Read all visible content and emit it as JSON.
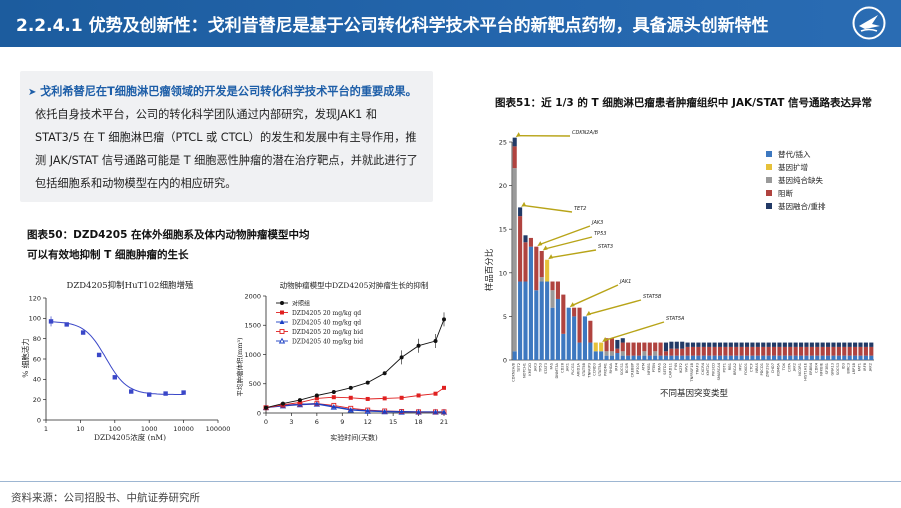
{
  "header": {
    "title": "2.2.4.1 优势及创新性：戈利昔替尼是基于公司转化科学技术平台的新靶点药物，具备源头创新特性"
  },
  "summary": {
    "lead": "戈利希替尼在T细胞淋巴瘤领域的开发是公司转化科学技术平台的重要成果。",
    "lines": [
      "依托自身技术平台，公司的转化科学团队通过内部研究，发现JAK1 和",
      "STAT3/5 在 T 细胞淋巴瘤（PTCL 或 CTCL）的发生和发展中有主导作用，推",
      "测 JAK/STAT 信号通路可能是 T 细胞恶性肿瘤的潜在治疗靶点，并就此进行了",
      "包括细胞系和动物模型在内的相应研究。"
    ]
  },
  "fig50": {
    "caption_line1": "图表50：DZD4205 在体外细胞系及体内动物肿瘤模型中均",
    "caption_line2": "可以有效地抑制 T 细胞肿瘤的生长"
  },
  "fig51": {
    "caption": "图表51：近 1/3 的 T 细胞淋巴瘤患者肿瘤组织中 JAK/STAT 信号通路表达异常"
  },
  "footer": {
    "source": "资料来源：公司招股书、中航证券研究所"
  },
  "colors": {
    "header_bg": "#2466ad",
    "blue": "#3d78c0",
    "yellow": "#e6c13a",
    "gray": "#9a9a9a",
    "red": "#b0433f",
    "navy": "#223a66",
    "arrow": "#b8a418"
  },
  "chart_data": [
    {
      "type": "scatter",
      "title": "DZD4205抑制HuT102细胞增殖",
      "xlabel": "DZD4205浓度 (nM)",
      "ylabel": "% 细胞活力",
      "xscale": "log",
      "xlim": [
        1,
        100000
      ],
      "ylim": [
        0,
        120
      ],
      "xticks": [
        "1",
        "10",
        "100",
        "1000",
        "10000",
        "100000"
      ],
      "yticks": [
        "0",
        "20",
        "40",
        "60",
        "80",
        "100",
        "120"
      ],
      "x": [
        1.4,
        4,
        12,
        35,
        100,
        300,
        1000,
        3000,
        10000
      ],
      "y": [
        97,
        94,
        86,
        64,
        42,
        28,
        25,
        26,
        27
      ],
      "grid": false
    },
    {
      "type": "line",
      "title": "动物肿瘤模型中DZD4205对肿瘤生长的抑制",
      "xlabel": "实验时间(天数)",
      "ylabel": "平均肿瘤体积(mm³)",
      "xlim": [
        0,
        21
      ],
      "ylim": [
        0,
        2000
      ],
      "xticks": [
        "0",
        "3",
        "6",
        "9",
        "12",
        "15",
        "18",
        "21"
      ],
      "yticks": [
        "0",
        "500",
        "1000",
        "1500",
        "2000"
      ],
      "legend_position": "top-left",
      "x": [
        0,
        2,
        4,
        6,
        8,
        10,
        12,
        14,
        16,
        18,
        20,
        21
      ],
      "series": [
        {
          "name": "对照组",
          "color": "#111111",
          "marker": "circle",
          "values": [
            90,
            160,
            220,
            300,
            360,
            430,
            520,
            680,
            950,
            1150,
            1230,
            1600
          ]
        },
        {
          "name": "DZD4205 20 mg/kg qd",
          "color": "#e02020",
          "marker": "square",
          "values": [
            90,
            140,
            180,
            250,
            270,
            260,
            240,
            250,
            260,
            300,
            330,
            430
          ]
        },
        {
          "name": "DZD4205 40 mg/kg qd",
          "color": "#1a3fc4",
          "marker": "triangle",
          "values": [
            90,
            130,
            150,
            160,
            110,
            60,
            40,
            30,
            25,
            20,
            20,
            20
          ]
        },
        {
          "name": "DZD4205 20 mg/kg bid",
          "color": "#e02020",
          "marker": "square-open",
          "values": [
            90,
            130,
            150,
            160,
            130,
            80,
            50,
            35,
            25,
            20,
            20,
            20
          ]
        },
        {
          "name": "DZD4205 40 mg/kg bid",
          "color": "#1a3fc4",
          "marker": "triangle-open",
          "values": [
            90,
            120,
            140,
            150,
            100,
            50,
            30,
            20,
            15,
            15,
            15,
            15
          ]
        }
      ]
    },
    {
      "type": "bar",
      "stacked": true,
      "xlabel": "不同基因突变类型",
      "ylabel": "样品百分比",
      "ylim": [
        0,
        25
      ],
      "yticks": [
        "0",
        "5",
        "10",
        "15",
        "20",
        "25"
      ],
      "legend_position": "top-right",
      "legend": [
        "替代/插入",
        "基因扩增",
        "基因纯合缺失",
        "阻断",
        "基因融合/重排"
      ],
      "annotations": [
        "CDKN2A/B",
        "TET2",
        "JAK3",
        "TP53",
        "STAT3",
        "JAK1",
        "STAT5B",
        "STAT5A"
      ],
      "categories": [
        "CDKN2A/B",
        "TET2",
        "NOTCH1",
        "KMT2D",
        "JAK3",
        "TP53",
        "STAT3",
        "FAS",
        "DNMT3A",
        "CD28",
        "JAK1",
        "PLCG1",
        "ARID1A",
        "STAT5B",
        "TNFAIP3",
        "CCND3",
        "STAT5A",
        "PRDM1",
        "RHOA",
        "IRF4",
        "SOCS1",
        "BCOR",
        "CREBBP",
        "EP300",
        "ATM",
        "NFKB1",
        "PTEN",
        "KRAS",
        "SETD2",
        "CARD11",
        "FYN",
        "IKZF2",
        "VAV1",
        "TNFRSF1B",
        "TRAF3",
        "CXCR4",
        "KMT2C",
        "PIK3CD",
        "SMARCA4",
        "POT1",
        "RB1",
        "BRCA2",
        "MYC",
        "FOXO1",
        "CTCF",
        "NRAS",
        "PDCD1",
        "ZNF292",
        "CHD7",
        "KDM6A",
        "TOX",
        "CIITA",
        "JAK2",
        "NCOR1",
        "HIST1H1E",
        "ERBB4",
        "CDK4",
        "NFKBIE",
        "SF3B1",
        "GNA13",
        "SOCS3",
        "ID3",
        "BIRC3",
        "LRP1B",
        "FAT1",
        "IRF8",
        "JAK2"
      ],
      "series": [
        {
          "name": "替代/插入",
          "values": [
            1,
            9,
            9,
            13,
            8,
            9,
            9,
            6,
            7,
            3,
            6,
            5,
            2,
            5,
            2,
            1,
            1,
            0.5,
            0.5,
            0.8,
            0.5,
            0.5,
            0.5,
            0.5,
            0.5,
            0.5,
            0.5,
            0.5,
            0.5,
            0.5,
            0.5,
            0.5,
            0.5,
            0.5,
            0.5,
            0.5,
            0.5,
            0.5,
            0.5,
            0.5,
            0.5,
            0.5,
            0.5,
            0.5,
            0.5,
            0.5,
            0.5,
            0.5,
            0.5,
            0.5,
            0.5,
            0.5,
            0.5,
            0.5,
            0.5,
            0.5,
            0.5,
            0.5,
            0.5,
            0.5,
            0.5,
            0.5,
            0.5,
            0.5,
            0.5,
            0.5,
            0.5
          ]
        },
        {
          "name": "基因扩增",
          "values": [
            0,
            0,
            0,
            0,
            0,
            0,
            2.5,
            0,
            0,
            0,
            0,
            0,
            0,
            0,
            0,
            1,
            1,
            0,
            0,
            0,
            0,
            0,
            0,
            0,
            0,
            0,
            0,
            0,
            0,
            0,
            0,
            0,
            0,
            0,
            0,
            0,
            0,
            0,
            0,
            0,
            0,
            0,
            0,
            0,
            0,
            0,
            0,
            0,
            0,
            0,
            0,
            0,
            0,
            0,
            0,
            0,
            0,
            0,
            0,
            0,
            0,
            0,
            0,
            0,
            0,
            0,
            0
          ]
        },
        {
          "name": "基因纯合缺失",
          "values": [
            21,
            0,
            0,
            0,
            0,
            0.5,
            0,
            2,
            0,
            0,
            0,
            0,
            0,
            0,
            0,
            0,
            0,
            0.5,
            0.5,
            0,
            0.5,
            0,
            0,
            0,
            0.5,
            0,
            0.5,
            0,
            0,
            0,
            0,
            0,
            0,
            0,
            0,
            0,
            0,
            0,
            0,
            0,
            0,
            0,
            0,
            0,
            0,
            0,
            0,
            0,
            0,
            0,
            0,
            0,
            0,
            0,
            0,
            0,
            0,
            0,
            0,
            0,
            0,
            0,
            0,
            0,
            0,
            0,
            0
          ]
        },
        {
          "name": "阻断",
          "values": [
            2.5,
            7.5,
            4.5,
            1,
            5,
            3,
            0,
            1,
            2,
            4.5,
            0,
            1,
            4,
            0,
            2.5,
            0,
            0,
            1.5,
            1.5,
            0.5,
            1,
            1.5,
            1.5,
            1.5,
            1,
            1.5,
            1,
            1.5,
            0.5,
            0.8,
            0.8,
            0.8,
            1,
            1,
            1,
            1,
            1,
            1,
            1,
            1,
            1,
            1,
            1,
            1,
            1,
            1,
            1,
            1,
            1,
            1,
            1,
            1,
            1,
            1,
            1,
            1,
            1,
            1,
            1,
            1,
            1,
            1,
            1,
            1,
            1,
            1,
            1
          ]
        },
        {
          "name": "基因融合/重排",
          "values": [
            1,
            1,
            0.8,
            0,
            0,
            0,
            0,
            0,
            0,
            0,
            0,
            0,
            0,
            0,
            0,
            0,
            0,
            0,
            0,
            1,
            0.5,
            0,
            0,
            0,
            0,
            0,
            0,
            0,
            1,
            0.8,
            0.8,
            0.8,
            0.5,
            0.5,
            0.5,
            0.5,
            0.5,
            0.5,
            0.5,
            0.5,
            0.5,
            0.5,
            0.5,
            0.5,
            0.5,
            0.5,
            0.5,
            0.5,
            0.5,
            0.5,
            0.5,
            0.5,
            0.5,
            0.5,
            0.5,
            0.5,
            0.5,
            0.5,
            0.5,
            0.5,
            0.5,
            0.5,
            0.5,
            0.5,
            0.5,
            0.5,
            0.5
          ]
        }
      ]
    }
  ]
}
